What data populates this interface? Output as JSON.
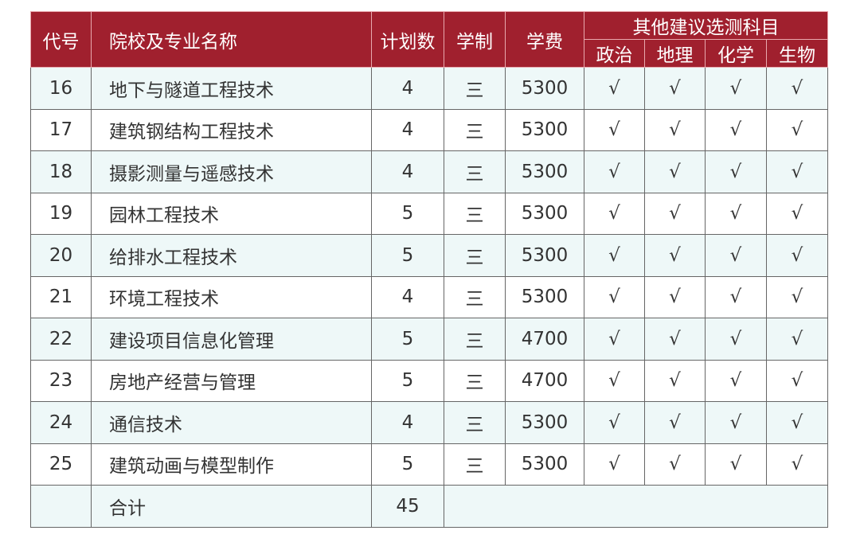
{
  "headers": {
    "code": "代号",
    "name": "院校及专业名称",
    "plan": "计划数",
    "years": "学制",
    "fee": "学费",
    "other": "其他建议选测科目",
    "subjects": [
      "政治",
      "地理",
      "化学",
      "生物"
    ]
  },
  "rows": [
    {
      "code": "16",
      "name": "地下与隧道工程技术",
      "plan": "4",
      "years": "三",
      "fee": "5300",
      "marks": [
        "√",
        "√",
        "√",
        "√"
      ]
    },
    {
      "code": "17",
      "name": "建筑钢结构工程技术",
      "plan": "4",
      "years": "三",
      "fee": "5300",
      "marks": [
        "√",
        "√",
        "√",
        "√"
      ]
    },
    {
      "code": "18",
      "name": "摄影测量与遥感技术",
      "plan": "4",
      "years": "三",
      "fee": "5300",
      "marks": [
        "√",
        "√",
        "√",
        "√"
      ]
    },
    {
      "code": "19",
      "name": "园林工程技术",
      "plan": "5",
      "years": "三",
      "fee": "5300",
      "marks": [
        "√",
        "√",
        "√",
        "√"
      ]
    },
    {
      "code": "20",
      "name": "给排水工程技术",
      "plan": "5",
      "years": "三",
      "fee": "5300",
      "marks": [
        "√",
        "√",
        "√",
        "√"
      ]
    },
    {
      "code": "21",
      "name": "环境工程技术",
      "plan": "4",
      "years": "三",
      "fee": "5300",
      "marks": [
        "√",
        "√",
        "√",
        "√"
      ]
    },
    {
      "code": "22",
      "name": "建设项目信息化管理",
      "plan": "5",
      "years": "三",
      "fee": "4700",
      "marks": [
        "√",
        "√",
        "√",
        "√"
      ]
    },
    {
      "code": "23",
      "name": "房地产经营与管理",
      "plan": "5",
      "years": "三",
      "fee": "4700",
      "marks": [
        "√",
        "√",
        "√",
        "√"
      ]
    },
    {
      "code": "24",
      "name": "通信技术",
      "plan": "4",
      "years": "三",
      "fee": "5300",
      "marks": [
        "√",
        "√",
        "√",
        "√"
      ]
    },
    {
      "code": "25",
      "name": "建筑动画与模型制作",
      "plan": "5",
      "years": "三",
      "fee": "5300",
      "marks": [
        "√",
        "√",
        "√",
        "√"
      ]
    }
  ],
  "total": {
    "label": "合计",
    "plan": "45"
  },
  "colors": {
    "header": "#a0202e",
    "stripe": "#eef8f8"
  }
}
